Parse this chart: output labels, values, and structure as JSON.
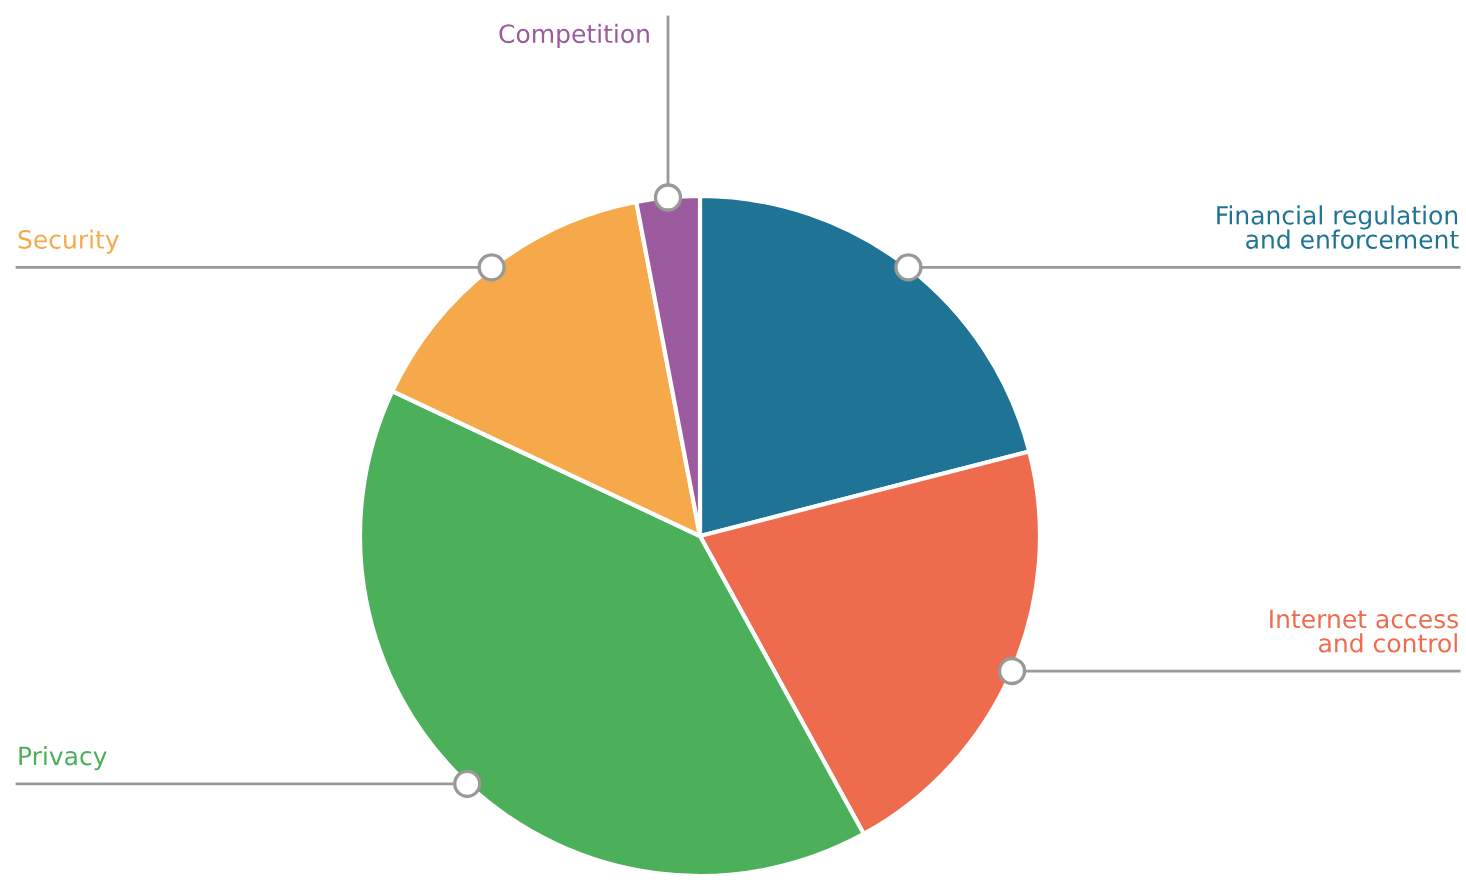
{
  "chart_data": {
    "type": "pie",
    "categories": [
      "Financial regulation\nand enforcement",
      "Internet access\nand control",
      "Privacy",
      "Security",
      "Competition"
    ],
    "values": [
      21,
      21,
      40,
      15,
      3
    ],
    "colors": [
      "#1f7394",
      "#ee6c4d",
      "#4caf5a",
      "#f5a94a",
      "#9b5b9e"
    ]
  }
}
